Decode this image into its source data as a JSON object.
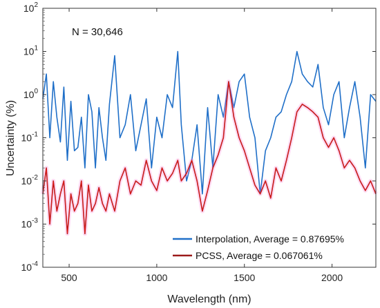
{
  "chart_data": {
    "type": "line",
    "annotation": "N = 30,646",
    "xlabel": "Wavelength (nm)",
    "ylabel": "Uncertainty (%)",
    "xlim": [
      350,
      2250
    ],
    "ylim": [
      0.0001,
      100
    ],
    "yscale": "log",
    "x_ticks": [
      500,
      1000,
      1500,
      2000
    ],
    "y_tick_labels": [
      {
        "base": "10",
        "exp": "2"
      },
      {
        "base": "10",
        "exp": "1"
      },
      {
        "base": "10",
        "exp": "0"
      },
      {
        "base": "10",
        "exp": "-1"
      },
      {
        "base": "10",
        "exp": "-2"
      },
      {
        "base": "10",
        "exp": "-3"
      },
      {
        "base": "10",
        "exp": "-4"
      }
    ],
    "legend_position": "bottom-right",
    "series": [
      {
        "name": "Interpolation, Average = 0.87695%",
        "color": "#1f6fc8",
        "x": [
          350,
          370,
          390,
          410,
          430,
          450,
          470,
          490,
          510,
          530,
          550,
          570,
          590,
          610,
          630,
          650,
          670,
          690,
          710,
          730,
          760,
          790,
          820,
          850,
          880,
          910,
          940,
          970,
          1000,
          1030,
          1060,
          1090,
          1120,
          1140,
          1170,
          1200,
          1230,
          1260,
          1290,
          1320,
          1350,
          1380,
          1410,
          1440,
          1470,
          1500,
          1530,
          1560,
          1590,
          1620,
          1650,
          1680,
          1710,
          1740,
          1770,
          1800,
          1830,
          1860,
          1890,
          1920,
          1950,
          1980,
          2010,
          2040,
          2070,
          2100,
          2130,
          2160,
          2190,
          2220,
          2250
        ],
        "y": [
          0.8,
          3,
          0.1,
          2,
          0.3,
          0.08,
          1.5,
          0.03,
          0.7,
          0.05,
          0.06,
          0.3,
          0.02,
          1,
          0.4,
          0.02,
          0.5,
          0.1,
          0.03,
          0.6,
          8,
          0.1,
          0.2,
          1,
          0.05,
          0.2,
          0.8,
          0.02,
          0.3,
          0.1,
          1,
          0.5,
          10,
          0.2,
          0.01,
          0.03,
          0.2,
          0.005,
          0.5,
          0.02,
          1,
          0.3,
          2,
          0.5,
          2,
          3,
          0.3,
          0.1,
          0.005,
          0.05,
          0.1,
          0.3,
          0.4,
          1,
          2,
          10,
          3,
          2,
          1.5,
          5,
          0.5,
          0.2,
          1,
          2,
          0.1,
          0.5,
          2,
          0.3,
          0.02,
          1,
          0.7
        ]
      },
      {
        "name": "PCSS, Average = 0.067061%",
        "color": "#9b1a1a",
        "x": [
          350,
          370,
          390,
          410,
          430,
          450,
          470,
          490,
          510,
          530,
          550,
          570,
          590,
          610,
          630,
          650,
          670,
          690,
          710,
          730,
          760,
          790,
          820,
          850,
          880,
          910,
          940,
          970,
          1000,
          1030,
          1060,
          1090,
          1120,
          1140,
          1170,
          1200,
          1230,
          1260,
          1290,
          1320,
          1350,
          1380,
          1410,
          1440,
          1470,
          1500,
          1530,
          1560,
          1590,
          1620,
          1650,
          1680,
          1710,
          1740,
          1770,
          1800,
          1830,
          1860,
          1890,
          1920,
          1950,
          1980,
          2010,
          2040,
          2070,
          2100,
          2130,
          2160,
          2190,
          2220,
          2250
        ],
        "y": [
          0.005,
          0.02,
          0.001,
          0.01,
          0.002,
          0.005,
          0.01,
          0.0006,
          0.005,
          0.002,
          0.003,
          0.01,
          0.0006,
          0.008,
          0.002,
          0.003,
          0.007,
          0.003,
          0.002,
          0.005,
          0.002,
          0.01,
          0.02,
          0.005,
          0.01,
          0.008,
          0.03,
          0.01,
          0.006,
          0.02,
          0.01,
          0.015,
          0.03,
          0.01,
          0.015,
          0.03,
          0.01,
          0.002,
          0.006,
          0.02,
          0.04,
          0.1,
          2,
          0.3,
          0.1,
          0.05,
          0.02,
          0.008,
          0.005,
          0.01,
          0.004,
          0.02,
          0.01,
          0.03,
          0.1,
          0.4,
          0.6,
          0.5,
          0.4,
          0.3,
          0.1,
          0.06,
          0.1,
          0.05,
          0.02,
          0.03,
          0.02,
          0.01,
          0.006,
          0.01,
          0.005
        ]
      }
    ]
  }
}
